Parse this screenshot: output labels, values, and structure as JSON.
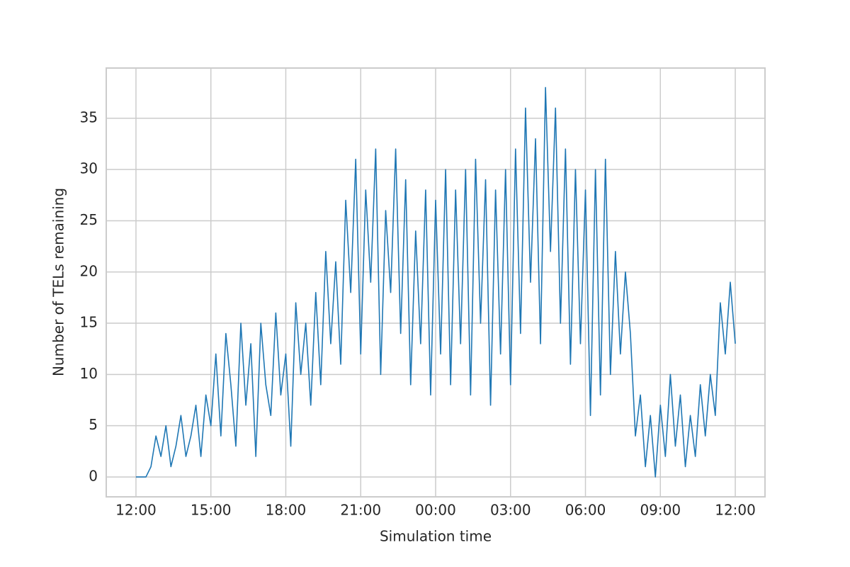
{
  "chart_data": {
    "type": "line",
    "xlabel": "Simulation time",
    "ylabel": "Number of TELs remaining",
    "x": [
      0,
      0.2,
      0.4,
      0.6,
      0.8,
      1.0,
      1.2,
      1.4,
      1.6,
      1.8,
      2.0,
      2.2,
      2.4,
      2.6,
      2.8,
      3.0,
      3.2,
      3.4,
      3.6,
      3.8,
      4.0,
      4.2,
      4.4,
      4.6,
      4.8,
      5.0,
      5.2,
      5.4,
      5.6,
      5.8,
      6.0,
      6.2,
      6.4,
      6.6,
      6.8,
      7.0,
      7.2,
      7.4,
      7.6,
      7.8,
      8.0,
      8.2,
      8.4,
      8.6,
      8.8,
      9.0,
      9.2,
      9.4,
      9.6,
      9.8,
      10.0,
      10.2,
      10.4,
      10.6,
      10.8,
      11.0,
      11.2,
      11.4,
      11.6,
      11.8,
      12.0,
      12.2,
      12.4,
      12.6,
      12.8,
      13.0,
      13.2,
      13.4,
      13.6,
      13.8,
      14.0,
      14.2,
      14.4,
      14.6,
      14.8,
      15.0,
      15.2,
      15.4,
      15.6,
      15.8,
      16.0,
      16.2,
      16.4,
      16.6,
      16.8,
      17.0,
      17.2,
      17.4,
      17.6,
      17.8,
      18.0,
      18.2,
      18.4,
      18.6,
      18.8,
      19.0,
      19.2,
      19.4,
      19.6,
      19.8,
      20.0,
      20.2,
      20.4,
      20.6,
      20.8,
      21.0,
      21.2,
      21.4,
      21.6,
      21.8,
      22.0,
      22.2,
      22.4,
      22.6,
      22.8,
      23.0,
      23.2,
      23.4,
      23.6,
      23.8,
      24.0
    ],
    "series": [
      {
        "name": "TELs remaining",
        "color": "#1f77b4",
        "values": [
          0,
          0,
          0,
          1,
          4,
          2,
          5,
          1,
          3,
          6,
          2,
          4,
          7,
          2,
          8,
          5,
          12,
          4,
          14,
          9,
          3,
          15,
          7,
          13,
          2,
          15,
          9,
          6,
          16,
          8,
          12,
          3,
          17,
          10,
          15,
          7,
          18,
          9,
          22,
          13,
          21,
          11,
          27,
          18,
          31,
          12,
          28,
          19,
          32,
          10,
          26,
          18,
          32,
          14,
          29,
          9,
          24,
          13,
          28,
          8,
          27,
          12,
          30,
          9,
          28,
          13,
          30,
          8,
          31,
          15,
          29,
          7,
          28,
          12,
          30,
          9,
          32,
          14,
          36,
          19,
          33,
          13,
          38,
          22,
          36,
          15,
          32,
          11,
          30,
          13,
          28,
          6,
          30,
          8,
          31,
          10,
          22,
          12,
          20,
          14,
          4,
          8,
          1,
          6,
          0,
          7,
          2,
          10,
          3,
          8,
          1,
          6,
          2,
          9,
          4,
          10,
          6,
          17,
          12,
          19,
          13
        ]
      }
    ],
    "xlim": [
      -1.19,
      25.19
    ],
    "xticks": [
      {
        "value": 0,
        "label": "12:00"
      },
      {
        "value": 3,
        "label": "15:00"
      },
      {
        "value": 6,
        "label": "18:00"
      },
      {
        "value": 9,
        "label": "21:00"
      },
      {
        "value": 12,
        "label": "00:00"
      },
      {
        "value": 15,
        "label": "03:00"
      },
      {
        "value": 18,
        "label": "06:00"
      },
      {
        "value": 21,
        "label": "09:00"
      },
      {
        "value": 24,
        "label": "12:00"
      }
    ],
    "ylim": [
      -1.94,
      39.9
    ],
    "yticks": [
      0,
      5,
      10,
      15,
      20,
      25,
      30,
      35
    ],
    "grid": true
  }
}
